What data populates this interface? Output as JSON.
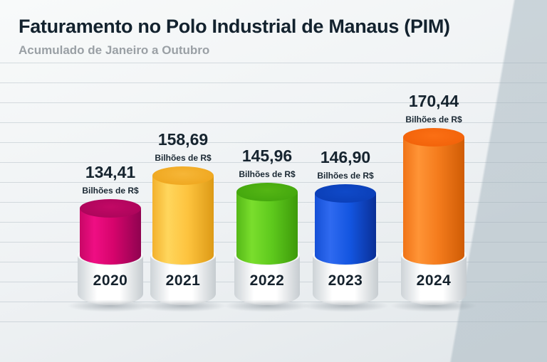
{
  "header": {
    "title": "Faturamento no Polo Industrial de Manaus (PIM)",
    "subtitle": "Acumulado de Janeiro a Outubro"
  },
  "chart_data": {
    "type": "bar",
    "title": "Faturamento no Polo Industrial de Manaus (PIM)",
    "subtitle": "Acumulado de Janeiro a Outubro",
    "unit": "Bilhões de R$",
    "categories": [
      "2020",
      "2021",
      "2022",
      "2023",
      "2024"
    ],
    "values": [
      134.41,
      158.69,
      145.96,
      146.9,
      170.44
    ],
    "grid": "horizontal-lines",
    "legend_position": "none",
    "bars": [
      {
        "year": "2020",
        "value": 134.41,
        "value_label": "134,41",
        "unit_label": "Bilhões de R$",
        "color": "#d6046c"
      },
      {
        "year": "2021",
        "value": 158.69,
        "value_label": "158,69",
        "unit_label": "Bilhões de R$",
        "color": "#fdc33e"
      },
      {
        "year": "2022",
        "value": 145.96,
        "value_label": "145,96",
        "unit_label": "Bilhões de R$",
        "color": "#5ec91d"
      },
      {
        "year": "2023",
        "value": 146.9,
        "value_label": "146,90",
        "unit_label": "Bilhões de R$",
        "color": "#1355e0"
      },
      {
        "year": "2024",
        "value": 170.44,
        "value_label": "170,44",
        "unit_label": "Bilhões de R$",
        "color": "#f47b1c"
      }
    ]
  }
}
